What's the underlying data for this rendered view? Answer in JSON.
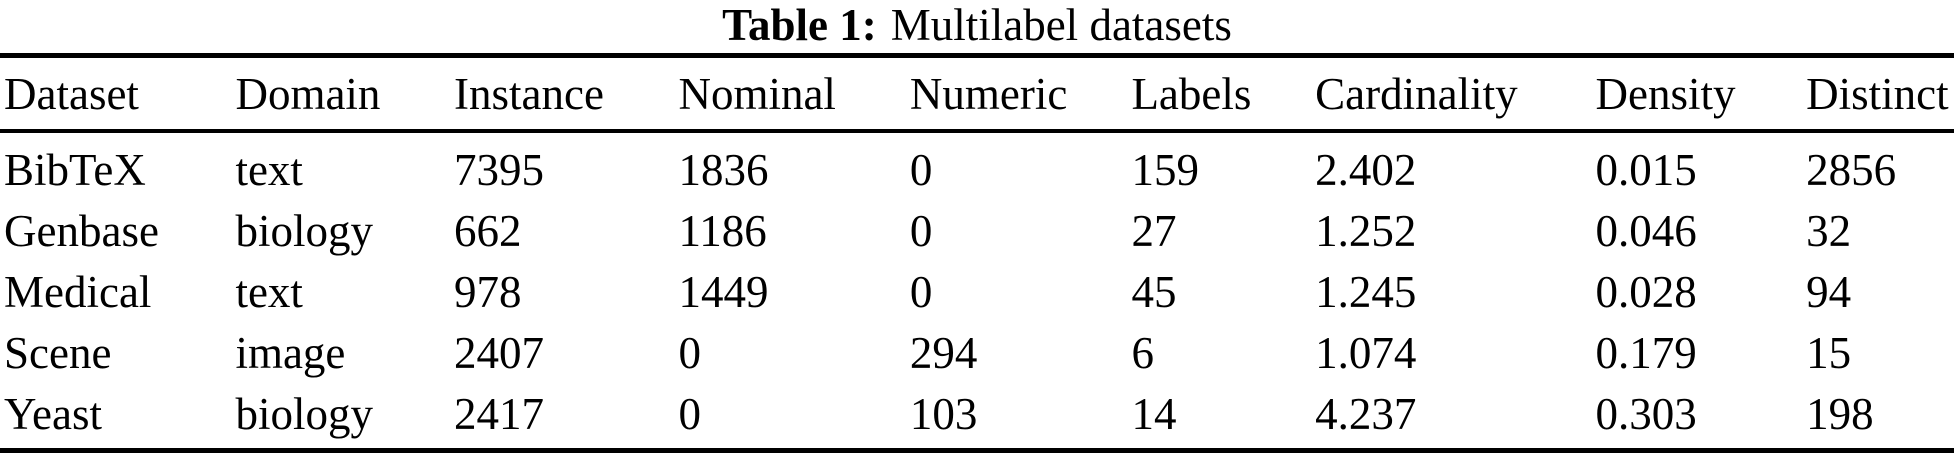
{
  "caption": {
    "label": "Table 1:",
    "text": "Multilabel datasets"
  },
  "table": {
    "columns": [
      "Dataset",
      "Domain",
      "Instance",
      "Nominal",
      "Numeric",
      "Labels",
      "Cardinality",
      "Density",
      "Distinct"
    ],
    "col_widths_pct": [
      11.87,
      11.21,
      11.51,
      11.87,
      11.36,
      9.42,
      14.38,
      10.8,
      7.58
    ],
    "rows": [
      [
        "BibTeX",
        "text",
        "7395",
        "1836",
        "0",
        "159",
        "2.402",
        "0.015",
        "2856"
      ],
      [
        "Genbase",
        "biology",
        "662",
        "1186",
        "0",
        "27",
        "1.252",
        "0.046",
        "32"
      ],
      [
        "Medical",
        "text",
        "978",
        "1449",
        "0",
        "45",
        "1.245",
        "0.028",
        "94"
      ],
      [
        "Scene",
        "image",
        "2407",
        "0",
        "294",
        "6",
        "1.074",
        "0.179",
        "15"
      ],
      [
        "Yeast",
        "biology",
        "2417",
        "0",
        "103",
        "14",
        "4.237",
        "0.303",
        "198"
      ]
    ]
  },
  "colors": {
    "text": "#000000",
    "background": "#ffffff",
    "rule": "#000000"
  }
}
